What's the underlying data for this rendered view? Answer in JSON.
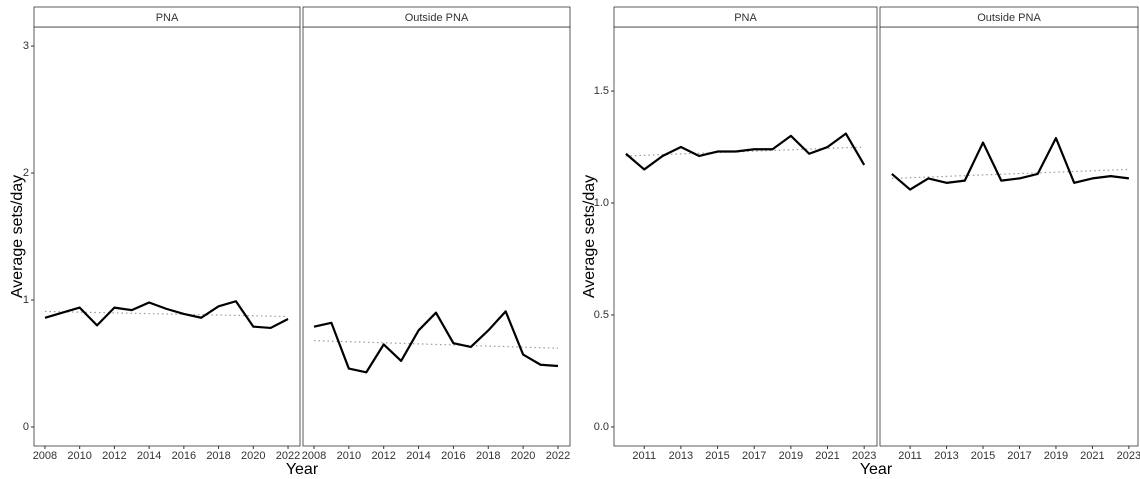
{
  "chart_data": [
    {
      "type": "line",
      "y_label": "Average sets/day",
      "x_label": "Year",
      "ylim": [
        -0.15,
        3.15
      ],
      "yticks": [
        0,
        1,
        2,
        3
      ],
      "facets": [
        {
          "title": "PNA",
          "xlim": [
            2007.37,
            2022.69
          ],
          "xticks": [
            2008,
            2010,
            2012,
            2014,
            2016,
            2018,
            2020,
            2022
          ],
          "x": [
            2008,
            2009,
            2010,
            2011,
            2012,
            2013,
            2014,
            2015,
            2016,
            2017,
            2018,
            2019,
            2020,
            2021,
            2022
          ],
          "series": [
            {
              "color": "#000000",
              "values": [
                0.86,
                0.9,
                0.94,
                0.8,
                0.94,
                0.92,
                0.98,
                0.93,
                0.89,
                0.86,
                0.95,
                0.99,
                0.79,
                0.78,
                0.85
              ]
            }
          ],
          "trend": {
            "color": "#999999",
            "style": "dotted",
            "x": [
              2008,
              2022
            ],
            "values": [
              0.91,
              0.87
            ]
          }
        },
        {
          "title": "Outside PNA",
          "xlim": [
            2007.37,
            2022.69
          ],
          "xticks": [
            2008,
            2010,
            2012,
            2014,
            2016,
            2018,
            2020,
            2022
          ],
          "x": [
            2008,
            2009,
            2010,
            2011,
            2012,
            2013,
            2014,
            2015,
            2016,
            2017,
            2018,
            2019,
            2020,
            2021,
            2022
          ],
          "series": [
            {
              "color": "#000000",
              "values": [
                0.79,
                0.82,
                0.46,
                0.43,
                0.65,
                0.52,
                0.76,
                0.9,
                0.66,
                0.63,
                0.76,
                0.91,
                0.57,
                0.49,
                0.48
              ]
            }
          ],
          "trend": {
            "color": "#999999",
            "style": "dotted",
            "x": [
              2008,
              2022
            ],
            "values": [
              0.68,
              0.62
            ]
          }
        }
      ]
    },
    {
      "type": "line",
      "y_label": "Average sets/day",
      "x_label": "Year",
      "ylim": [
        -0.085,
        1.786
      ],
      "yticks": [
        {
          "value": 0,
          "label": "0.0"
        },
        {
          "value": 0.5,
          "label": "0.5"
        },
        {
          "value": 1,
          "label": "1.0"
        },
        {
          "value": 1.5,
          "label": "1.5"
        }
      ],
      "facets": [
        {
          "title": "PNA",
          "xlim": [
            2009.35,
            2023.7
          ],
          "xticks": [
            2011,
            2013,
            2015,
            2017,
            2019,
            2021,
            2023
          ],
          "x": [
            2010,
            2011,
            2012,
            2013,
            2014,
            2015,
            2016,
            2017,
            2018,
            2019,
            2020,
            2021,
            2022,
            2023
          ],
          "series": [
            {
              "color": "#000000",
              "values": [
                1.22,
                1.15,
                1.21,
                1.25,
                1.21,
                1.23,
                1.23,
                1.24,
                1.24,
                1.3,
                1.22,
                1.25,
                1.31,
                1.17
              ]
            }
          ],
          "trend": {
            "color": "#999999",
            "style": "dotted",
            "x": [
              2010,
              2023
            ],
            "values": [
              1.21,
              1.25
            ]
          }
        },
        {
          "title": "Outside PNA",
          "xlim": [
            2009.35,
            2023.5
          ],
          "xticks": [
            2011,
            2013,
            2015,
            2017,
            2019,
            2021,
            2023
          ],
          "x": [
            2010,
            2011,
            2012,
            2013,
            2014,
            2015,
            2016,
            2017,
            2018,
            2019,
            2020,
            2021,
            2022,
            2023
          ],
          "series": [
            {
              "color": "#000000",
              "values": [
                1.13,
                1.06,
                1.11,
                1.09,
                1.1,
                1.27,
                1.1,
                1.11,
                1.13,
                1.29,
                1.09,
                1.11,
                1.12,
                1.11
              ]
            }
          ],
          "trend": {
            "color": "#999999",
            "style": "dotted",
            "x": [
              2010,
              2023
            ],
            "values": [
              1.11,
              1.15
            ]
          }
        }
      ]
    }
  ]
}
